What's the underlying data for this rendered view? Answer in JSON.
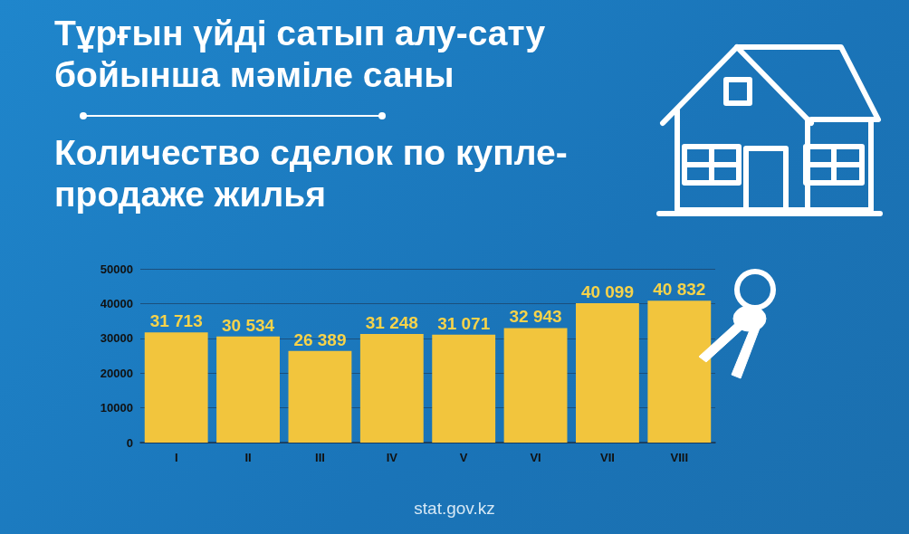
{
  "chart_data": {
    "type": "bar",
    "title": "Тұрғын үйді сатып алу-сату бойынша мәміле саны",
    "subtitle": "Количество сделок по купле-продаже жилья",
    "categories": [
      "I",
      "II",
      "III",
      "IV",
      "V",
      "VI",
      "VII",
      "VIII"
    ],
    "values": [
      31713,
      30534,
      26389,
      31248,
      31071,
      32943,
      40099,
      40832
    ],
    "value_labels": [
      "31 713",
      "30 534",
      "26 389",
      "31 248",
      "31 071",
      "32 943",
      "40 099",
      "40 832"
    ],
    "color": "#f2c53d",
    "ylim": [
      0,
      50000
    ],
    "yticks": [
      0,
      10000,
      20000,
      30000,
      40000,
      50000
    ],
    "grid": "y",
    "annotations": [
      "stat.gov.kz"
    ]
  }
}
